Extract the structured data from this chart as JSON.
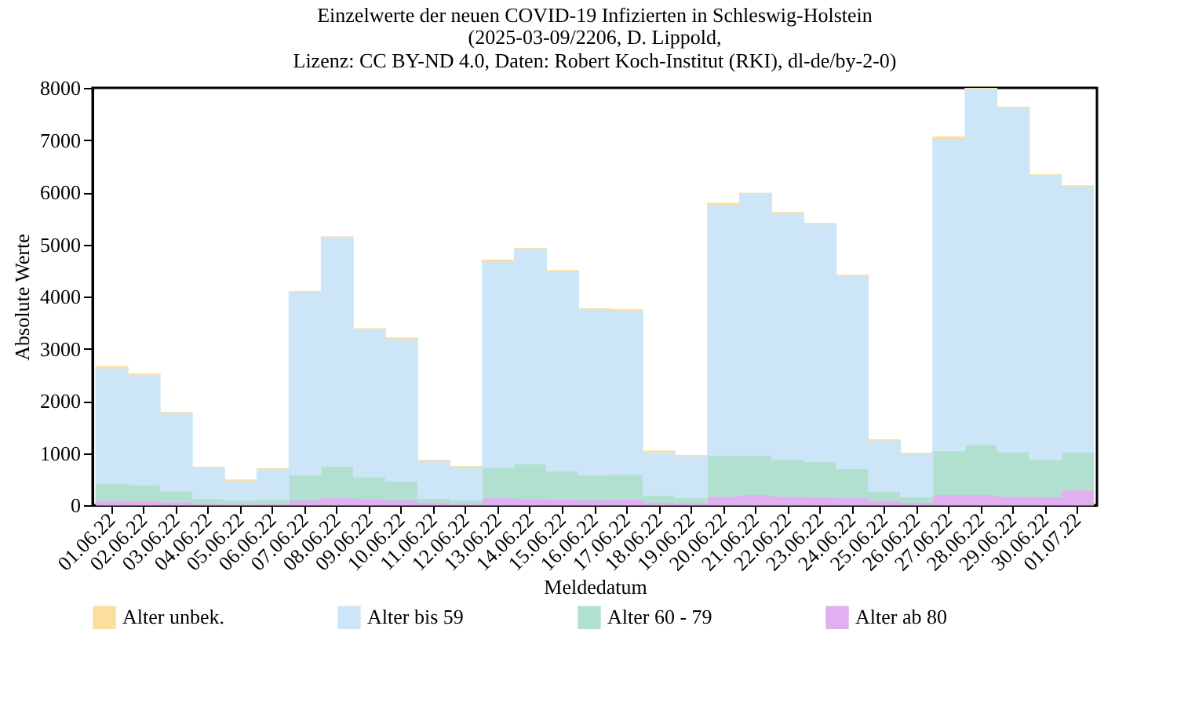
{
  "chart_data": {
    "type": "bar",
    "title": "Einzelwerte der neuen COVID-19 Infizierten in Schleswig-Holstein",
    "subtitle": "(2025-03-09/2206, D. Lippold,\nLizenz: CC BY-ND 4.0, Daten: Robert Koch-Institut (RKI), dl-de/by-2-0)",
    "xlabel": "Meldedatum",
    "ylabel": "Absolute Werte",
    "categories": [
      "01.06.22",
      "02.06.22",
      "03.06.22",
      "04.06.22",
      "05.06.22",
      "06.06.22",
      "07.06.22",
      "08.06.22",
      "09.06.22",
      "10.06.22",
      "11.06.22",
      "12.06.22",
      "13.06.22",
      "14.06.22",
      "15.06.22",
      "16.06.22",
      "17.06.22",
      "18.06.22",
      "19.06.22",
      "20.06.22",
      "21.06.22",
      "22.06.22",
      "23.06.22",
      "24.06.22",
      "25.06.22",
      "26.06.22",
      "27.06.22",
      "28.06.22",
      "29.06.22",
      "30.06.22",
      "01.07.22"
    ],
    "stacked": true,
    "ylim": [
      0,
      8000
    ],
    "yticks": [
      0,
      1000,
      2000,
      3000,
      4000,
      5000,
      6000,
      7000,
      8000
    ],
    "legend": "bottom",
    "series": [
      {
        "name": "Alter ab 80",
        "color": "#e0b0f0",
        "values": [
          90,
          80,
          60,
          30,
          20,
          30,
          100,
          140,
          120,
          100,
          50,
          30,
          140,
          120,
          110,
          100,
          110,
          50,
          40,
          170,
          200,
          170,
          150,
          140,
          90,
          50,
          200,
          200,
          170,
          160,
          290
        ]
      },
      {
        "name": "Alter 60 - 79",
        "color": "#b2e0d0",
        "values": [
          320,
          310,
          210,
          90,
          70,
          80,
          480,
          610,
          420,
          360,
          80,
          70,
          580,
          670,
          540,
          480,
          480,
          140,
          100,
          780,
          750,
          700,
          680,
          560,
          170,
          110,
          840,
          960,
          850,
          710,
          730
        ]
      },
      {
        "name": "Alter bis 59",
        "color": "#cde6f7",
        "values": [
          2220,
          2120,
          1510,
          610,
          390,
          590,
          3510,
          4390,
          2840,
          2740,
          730,
          640,
          3950,
          4130,
          3830,
          3180,
          3140,
          830,
          810,
          4810,
          5030,
          4720,
          4570,
          3710,
          990,
          840,
          5990,
          6830,
          6610,
          5460,
          5100
        ]
      },
      {
        "name": "Alter unbek.",
        "color": "#fbdf9f",
        "values": [
          30,
          0,
          0,
          0,
          0,
          0,
          10,
          0,
          0,
          0,
          0,
          0,
          30,
          0,
          20,
          0,
          20,
          20,
          0,
          30,
          0,
          20,
          0,
          0,
          0,
          0,
          30,
          0,
          0,
          0,
          0
        ]
      }
    ]
  }
}
